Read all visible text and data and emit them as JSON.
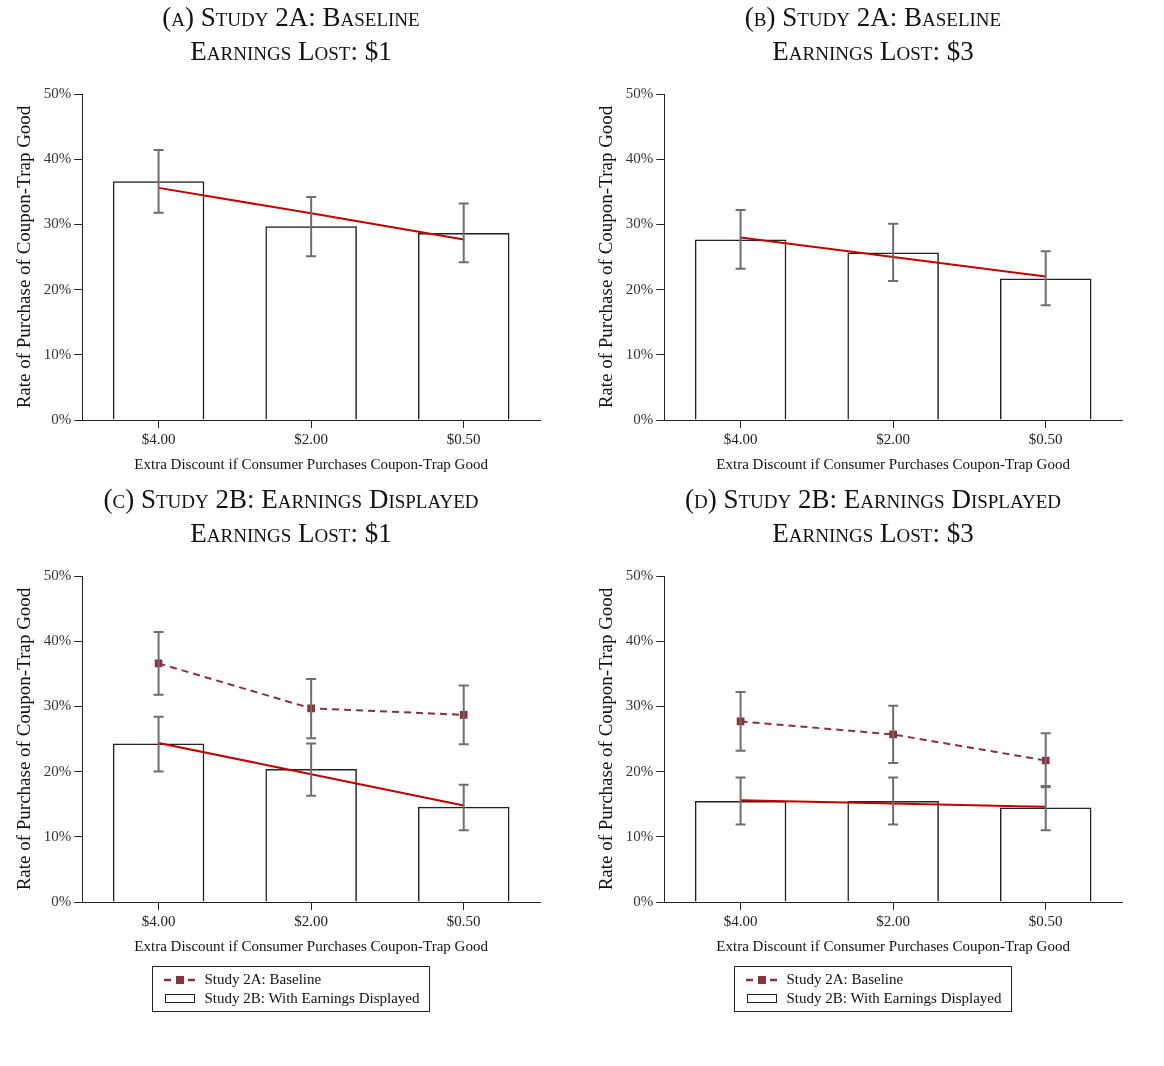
{
  "chart_data": [
    {
      "type": "bar",
      "title": "(a) Study 2A: Baseline",
      "subtitle": "Earnings Lost: $1",
      "xlabel": "Extra Discount if Consumer Purchases Coupon-Trap Good",
      "ylabel": "Rate of Purchase of Coupon-Trap Good",
      "categories": [
        "$4.00",
        "$2.00",
        "$0.50"
      ],
      "ylim": [
        0,
        50
      ],
      "yticks": [
        {
          "value": 0,
          "label": "0%"
        },
        {
          "value": 10,
          "label": "10%"
        },
        {
          "value": 20,
          "label": "20%"
        },
        {
          "value": 30,
          "label": "30%"
        },
        {
          "value": 40,
          "label": "40%"
        },
        {
          "value": 50,
          "label": "50%"
        }
      ],
      "grid": false,
      "legend": false,
      "series": [
        {
          "color": "#222222",
          "values": [
            36.6,
            29.7,
            28.7
          ],
          "errors": [
            [
              31.8,
              41.4
            ],
            [
              25.1,
              34.2
            ],
            [
              24.2,
              33.2
            ]
          ]
        },
        {
          "type": "line",
          "color": "#c00000",
          "values": [
            35.6,
            31.7,
            27.7
          ]
        }
      ]
    },
    {
      "type": "bar",
      "title": "(b) Study 2A: Baseline",
      "subtitle": "Earnings Lost: $3",
      "xlabel": "Extra Discount if Consumer Purchases Coupon-Trap Good",
      "ylabel": "Rate of Purchase of Coupon-Trap Good",
      "categories": [
        "$4.00",
        "$2.00",
        "$0.50"
      ],
      "ylim": [
        0,
        50
      ],
      "yticks": [
        {
          "value": 0,
          "label": "0%"
        },
        {
          "value": 10,
          "label": "10%"
        },
        {
          "value": 20,
          "label": "20%"
        },
        {
          "value": 30,
          "label": "30%"
        },
        {
          "value": 40,
          "label": "40%"
        },
        {
          "value": 50,
          "label": "50%"
        }
      ],
      "grid": false,
      "legend": false,
      "series": [
        {
          "color": "#222222",
          "values": [
            27.7,
            25.7,
            21.7
          ],
          "errors": [
            [
              23.2,
              32.2
            ],
            [
              21.3,
              30.1
            ],
            [
              17.6,
              25.9
            ]
          ]
        },
        {
          "type": "line",
          "color": "#c00000",
          "values": [
            28.0,
            25.0,
            22.0
          ]
        }
      ]
    },
    {
      "type": "bar",
      "title": "(c) Study 2B: Earnings Displayed",
      "subtitle": "Earnings Lost: $1",
      "xlabel": "Extra Discount if Consumer Purchases Coupon-Trap Good",
      "ylabel": "Rate of Purchase of Coupon-Trap Good",
      "categories": [
        "$4.00",
        "$2.00",
        "$0.50"
      ],
      "ylim": [
        0,
        50
      ],
      "yticks": [
        {
          "value": 0,
          "label": "0%"
        },
        {
          "value": 10,
          "label": "10%"
        },
        {
          "value": 20,
          "label": "20%"
        },
        {
          "value": 30,
          "label": "30%"
        },
        {
          "value": 40,
          "label": "40%"
        },
        {
          "value": 50,
          "label": "50%"
        }
      ],
      "grid": false,
      "legend": "bottom",
      "series": [
        {
          "type": "line",
          "name": "Study 2A: Baseline",
          "color": "#8b3040",
          "marker": "square",
          "line_style": "dashed",
          "values": [
            36.6,
            29.7,
            28.7
          ],
          "errors": [
            [
              31.8,
              41.4
            ],
            [
              25.1,
              34.2
            ],
            [
              24.2,
              33.2
            ]
          ]
        },
        {
          "name": "Study 2B: With Earnings Displayed",
          "color": "#222222",
          "values": [
            24.3,
            20.4,
            14.6
          ],
          "errors": [
            [
              20.0,
              28.4
            ],
            [
              16.3,
              24.3
            ],
            [
              11.0,
              18.0
            ]
          ]
        },
        {
          "type": "line",
          "color": "#c00000",
          "values": [
            24.4,
            19.6,
            14.8
          ]
        }
      ]
    },
    {
      "type": "bar",
      "title": "(d) Study 2B: Earnings Displayed",
      "subtitle": "Earnings Lost: $3",
      "xlabel": "Extra Discount if Consumer Purchases Coupon-Trap Good",
      "ylabel": "Rate of Purchase of Coupon-Trap Good",
      "categories": [
        "$4.00",
        "$2.00",
        "$0.50"
      ],
      "ylim": [
        0,
        50
      ],
      "yticks": [
        {
          "value": 0,
          "label": "0%"
        },
        {
          "value": 10,
          "label": "10%"
        },
        {
          "value": 20,
          "label": "20%"
        },
        {
          "value": 30,
          "label": "30%"
        },
        {
          "value": 40,
          "label": "40%"
        },
        {
          "value": 50,
          "label": "50%"
        }
      ],
      "grid": false,
      "legend": "bottom",
      "series": [
        {
          "type": "line",
          "name": "Study 2A: Baseline",
          "color": "#8b3040",
          "marker": "square",
          "line_style": "dashed",
          "values": [
            27.7,
            25.7,
            21.7
          ],
          "errors": [
            [
              23.2,
              32.2
            ],
            [
              21.3,
              30.1
            ],
            [
              17.6,
              25.9
            ]
          ]
        },
        {
          "name": "Study 2B: With Earnings Displayed",
          "color": "#222222",
          "values": [
            15.5,
            15.5,
            14.5
          ],
          "errors": [
            [
              11.9,
              19.1
            ],
            [
              11.9,
              19.1
            ],
            [
              11.0,
              17.8
            ]
          ]
        },
        {
          "type": "line",
          "color": "#c00000",
          "values": [
            15.6,
            15.1,
            14.6
          ]
        }
      ]
    }
  ]
}
